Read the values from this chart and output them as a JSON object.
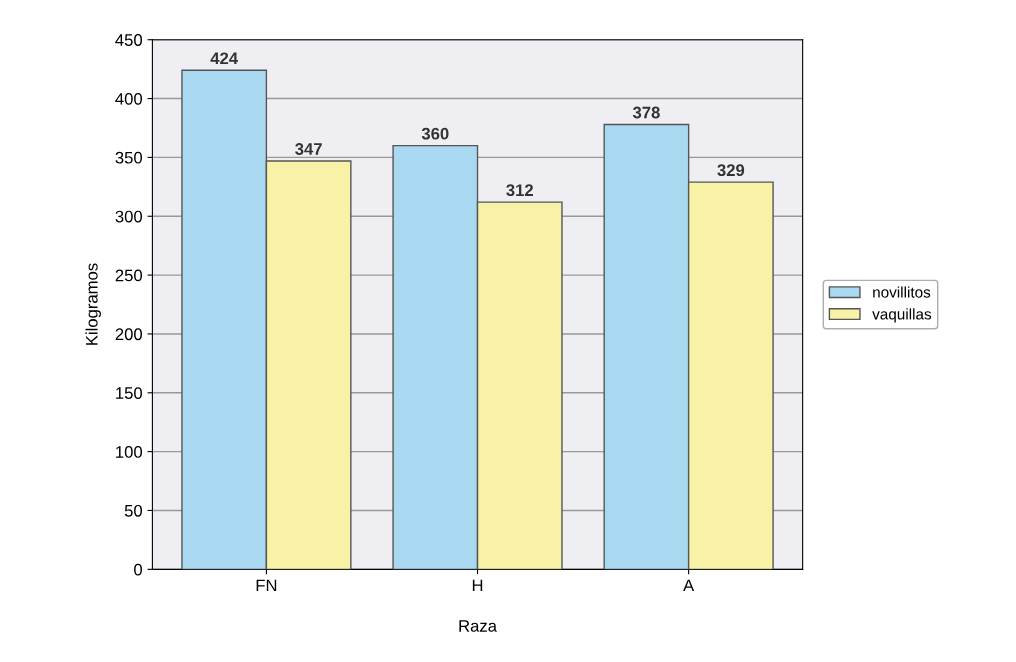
{
  "chart_data": {
    "type": "bar",
    "xlabel": "Raza",
    "ylabel": "Kilogramos",
    "categories": [
      "FN",
      "H",
      "A"
    ],
    "series": [
      {
        "name": "novillitos",
        "color": "#a9d9f0",
        "values": [
          424,
          360,
          378
        ]
      },
      {
        "name": "vaquillas",
        "color": "#f7f2a6",
        "values": [
          347,
          312,
          329
        ]
      }
    ],
    "ylim": [
      0,
      450
    ],
    "yticks": [
      0,
      50,
      100,
      150,
      200,
      250,
      300,
      350,
      400,
      450
    ],
    "grid": "y",
    "legend": "right",
    "data_labels": true
  }
}
